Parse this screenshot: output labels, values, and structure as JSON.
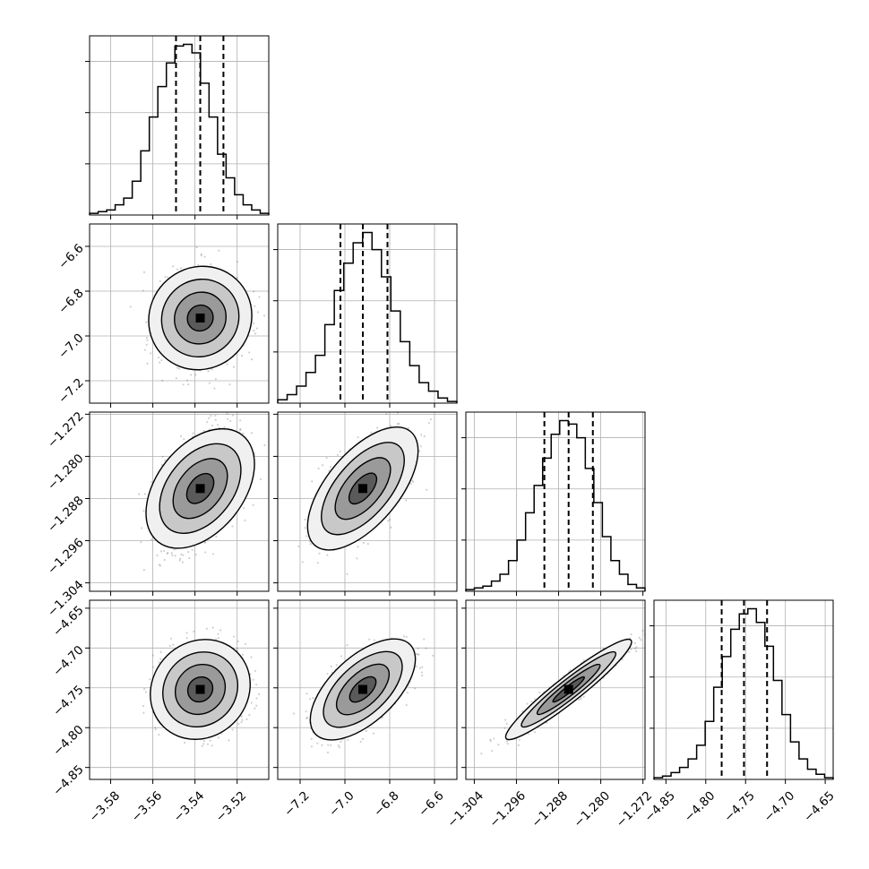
{
  "chart_data": {
    "type": "corner",
    "grid": true,
    "parameters": [
      {
        "ticks": [
          -3.58,
          -3.56,
          -3.54,
          -3.52
        ],
        "tick_labels": [
          "−3.58",
          "−3.56",
          "−3.54",
          "−3.52"
        ],
        "range": [
          -3.59,
          -3.505
        ],
        "quantiles": [
          -3.549,
          -3.5375,
          -3.5265
        ],
        "hist": [
          0.01,
          0.02,
          0.03,
          0.06,
          0.1,
          0.2,
          0.38,
          0.58,
          0.76,
          0.9,
          1.0,
          1.01,
          0.96,
          0.78,
          0.58,
          0.36,
          0.22,
          0.12,
          0.06,
          0.03,
          0.01
        ]
      },
      {
        "ticks": [
          -7.2,
          -7.0,
          -6.8,
          -6.6
        ],
        "tick_labels": [
          "−7.2",
          "−7.0",
          "−6.8",
          "−6.6"
        ],
        "range": [
          -7.3,
          -6.5
        ],
        "quantiles": [
          -7.02,
          -6.92,
          -6.81
        ],
        "hist": [
          0.02,
          0.05,
          0.1,
          0.18,
          0.28,
          0.46,
          0.66,
          0.82,
          0.94,
          1.0,
          0.9,
          0.74,
          0.54,
          0.36,
          0.22,
          0.12,
          0.07,
          0.03,
          0.01
        ]
      },
      {
        "ticks": [
          -1.304,
          -1.296,
          -1.288,
          -1.28,
          -1.272
        ],
        "tick_labels": [
          "−1.304",
          "−1.296",
          "−1.288",
          "−1.280",
          "−1.272"
        ],
        "range": [
          -1.3056,
          -1.2716
        ],
        "quantiles": [
          -1.2907,
          -1.2861,
          -1.2815
        ],
        "hist": [
          0.01,
          0.02,
          0.03,
          0.06,
          0.1,
          0.18,
          0.3,
          0.46,
          0.62,
          0.78,
          0.92,
          1.0,
          0.98,
          0.9,
          0.72,
          0.52,
          0.32,
          0.18,
          0.1,
          0.04,
          0.02
        ]
      },
      {
        "ticks": [
          -4.85,
          -4.8,
          -4.75,
          -4.7,
          -4.65
        ],
        "tick_labels": [
          "−4.85",
          "−4.80",
          "−4.75",
          "−4.70",
          "−4.65"
        ],
        "range": [
          -4.865,
          -4.64
        ],
        "quantiles": [
          -4.78,
          -4.752,
          -4.723
        ],
        "hist": [
          0.01,
          0.02,
          0.04,
          0.07,
          0.12,
          0.2,
          0.34,
          0.54,
          0.72,
          0.88,
          0.97,
          1.0,
          0.92,
          0.78,
          0.58,
          0.38,
          0.22,
          0.12,
          0.06,
          0.03,
          0.01
        ]
      }
    ],
    "centers": [
      -3.5375,
      -6.92,
      -1.2861,
      -4.752
    ],
    "sigmas": [
      0.0095,
      0.095,
      0.0048,
      0.025
    ],
    "pairs": [
      {
        "row": 1,
        "col": 0,
        "rho": 0.05
      },
      {
        "row": 2,
        "col": 0,
        "rho": 0.42
      },
      {
        "row": 2,
        "col": 1,
        "rho": 0.62
      },
      {
        "row": 3,
        "col": 0,
        "rho": 0.1
      },
      {
        "row": 3,
        "col": 1,
        "rho": 0.6
      },
      {
        "row": 3,
        "col": 2,
        "rho": 0.95
      }
    ],
    "contour_levels": [
      0.5,
      1.0,
      1.5,
      2.0
    ]
  }
}
